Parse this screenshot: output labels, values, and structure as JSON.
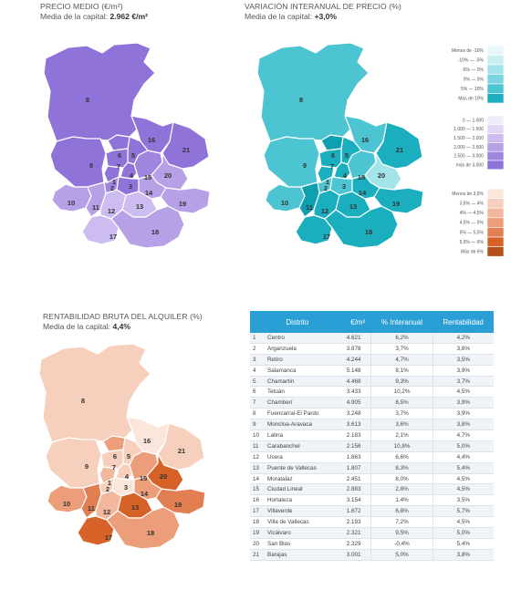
{
  "maps": {
    "price": {
      "title": "PRECIO MEDIO (€/m²)",
      "sub_label": "Media de la capital: ",
      "sub_value": "2.962 €/m²"
    },
    "variation": {
      "title": "VARIACIÓN INTERANUAL DE PRECIO (%)",
      "sub_label": "Media de la capital: ",
      "sub_value": "+3,0%"
    },
    "rent": {
      "title": "RENTABILIDAD BRUTA DEL ALQUILER (%)",
      "sub_label": "Media de la capital: ",
      "sub_value": "4,4%"
    }
  },
  "legends": {
    "variation": {
      "labels": [
        "Menos de -10%",
        "-10%  —  -5%",
        "-5%  —  0%",
        "0%  —  5%",
        "5%  —  10%",
        "Más de 10%"
      ],
      "colors": [
        "#e6f8fa",
        "#c9eff3",
        "#a3e3ea",
        "#7ad5e0",
        "#4cc4d2",
        "#1aaebf"
      ]
    },
    "price": {
      "labels": [
        "0  —  1.000",
        "1.000  —  1.500",
        "1.500  —  2.000",
        "2.000  —  2.500",
        "2.500  —  3.000",
        "más de 3.000"
      ],
      "colors": [
        "#f1ecfb",
        "#e2d7f6",
        "#cdbcef",
        "#b6a0e6",
        "#a085de",
        "#8f73d8"
      ]
    },
    "rent": {
      "labels": [
        "Menos de 3,5%",
        "3,5%  —  4%",
        "4%  —  4,5%",
        "4,5%  —  5%",
        "5%  —  5,5%",
        "5,5%  —  6%",
        "Más de 6%"
      ],
      "colors": [
        "#fbe6dc",
        "#f7cfbd",
        "#f2b79d",
        "#ec9d79",
        "#e27f52",
        "#d76228",
        "#b5501c"
      ]
    }
  },
  "table": {
    "headers": [
      "Distrito",
      "€/m²",
      "% Interanual",
      "Rentabilidad"
    ],
    "rows": [
      {
        "n": "1",
        "name": "Centro",
        "price": "4.621",
        "var": "6,2%",
        "rent": "4,2%"
      },
      {
        "n": "2",
        "name": "Arganzuela",
        "price": "3.878",
        "var": "3,7%",
        "rent": "3,8%"
      },
      {
        "n": "3",
        "name": "Retiro",
        "price": "4.244",
        "var": "4,7%",
        "rent": "3,5%"
      },
      {
        "n": "4",
        "name": "Salamanca",
        "price": "5.148",
        "var": "8,1%",
        "rent": "3,9%"
      },
      {
        "n": "5",
        "name": "Chamartín",
        "price": "4.468",
        "var": "9,3%",
        "rent": "3,7%"
      },
      {
        "n": "6",
        "name": "Tetuán",
        "price": "3.433",
        "var": "10,2%",
        "rent": "4,5%"
      },
      {
        "n": "7",
        "name": "Chamberí",
        "price": "4.905",
        "var": "8,5%",
        "rent": "3,9%"
      },
      {
        "n": "8",
        "name": "Fuencarral-El Pardo",
        "price": "3.248",
        "var": "3,7%",
        "rent": "3,9%"
      },
      {
        "n": "9",
        "name": "Moncloa-Aravaca",
        "price": "3.613",
        "var": "3,6%",
        "rent": "3,8%"
      },
      {
        "n": "10",
        "name": "Latina",
        "price": "2.183",
        "var": "2,1%",
        "rent": "4,7%"
      },
      {
        "n": "11",
        "name": "Carabanchel",
        "price": "2.156",
        "var": "10,8%",
        "rent": "5,0%"
      },
      {
        "n": "12",
        "name": "Usera",
        "price": "1.863",
        "var": "6,6%",
        "rent": "4,4%"
      },
      {
        "n": "13",
        "name": "Puente de Vallecas",
        "price": "1.807",
        "var": "8,3%",
        "rent": "5,4%"
      },
      {
        "n": "14",
        "name": "Moratalaz",
        "price": "2.451",
        "var": "8,0%",
        "rent": "4,5%"
      },
      {
        "n": "15",
        "name": "Ciudad Lineal",
        "price": "2.883",
        "var": "2,8%",
        "rent": "4,5%"
      },
      {
        "n": "16",
        "name": "Hortaleza",
        "price": "3.154",
        "var": "1,4%",
        "rent": "3,5%"
      },
      {
        "n": "17",
        "name": "Villaverde",
        "price": "1.672",
        "var": "6,8%",
        "rent": "5,7%"
      },
      {
        "n": "18",
        "name": "Villa de Vallecas",
        "price": "2.193",
        "var": "7,2%",
        "rent": "4,5%"
      },
      {
        "n": "19",
        "name": "Vicálvaro",
        "price": "2.321",
        "var": "9,5%",
        "rent": "5,0%"
      },
      {
        "n": "20",
        "name": "San Blas",
        "price": "2.329",
        "var": "-0,4%",
        "rent": "5,4%"
      },
      {
        "n": "21",
        "name": "Barajas",
        "price": "3.001",
        "var": "5,0%",
        "rent": "3,8%"
      }
    ]
  },
  "chart_data": {
    "type": "table",
    "columns": [
      "Distrito",
      "€/m²",
      "% Interanual",
      "Rentabilidad"
    ],
    "districts": [
      "Centro",
      "Arganzuela",
      "Retiro",
      "Salamanca",
      "Chamartín",
      "Tetuán",
      "Chamberí",
      "Fuencarral-El Pardo",
      "Moncloa-Aravaca",
      "Latina",
      "Carabanchel",
      "Usera",
      "Puente de Vallecas",
      "Moratalaz",
      "Ciudad Lineal",
      "Hortaleza",
      "Villaverde",
      "Villa de Vallecas",
      "Vicálvaro",
      "San Blas",
      "Barajas"
    ],
    "price_eur_m2": [
      4621,
      3878,
      4244,
      5148,
      4468,
      3433,
      4905,
      3248,
      3613,
      2183,
      2156,
      1863,
      1807,
      2451,
      2883,
      3154,
      1672,
      2193,
      2321,
      2329,
      3001
    ],
    "interanual_pct": [
      6.2,
      3.7,
      4.7,
      8.1,
      9.3,
      10.2,
      8.5,
      3.7,
      3.6,
      2.1,
      10.8,
      6.6,
      8.3,
      8.0,
      2.8,
      1.4,
      6.8,
      7.2,
      9.5,
      -0.4,
      5.0
    ],
    "rentabilidad_pct": [
      4.2,
      3.8,
      3.5,
      3.9,
      3.7,
      4.5,
      3.9,
      3.9,
      3.8,
      4.7,
      5.0,
      4.4,
      5.4,
      4.5,
      4.5,
      3.5,
      5.7,
      4.5,
      5.0,
      5.4,
      3.8
    ]
  }
}
